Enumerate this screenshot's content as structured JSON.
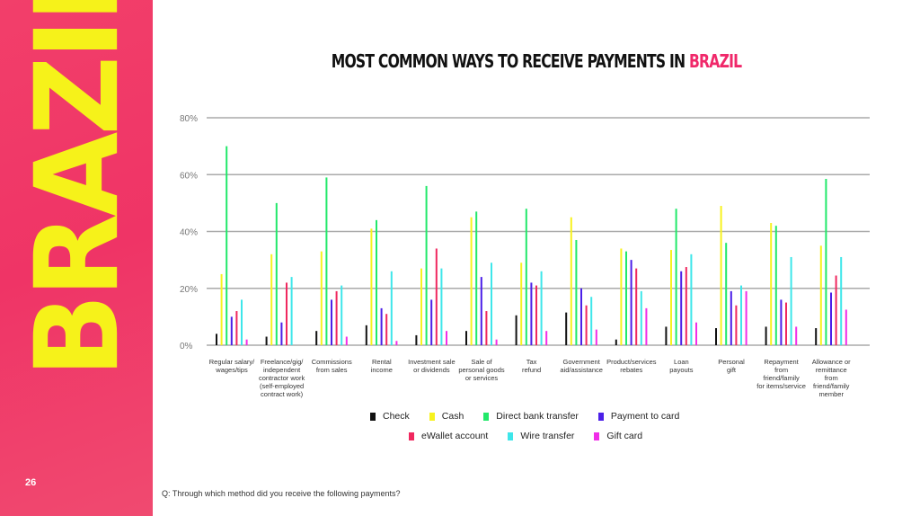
{
  "banner": {
    "word": "BRAZIL",
    "page_number": "26"
  },
  "title": {
    "prefix": "MOST COMMON WAYS TO RECEIVE PAYMENTS IN ",
    "highlight": "BRAZIL"
  },
  "question": "Q: Through which method did you receive the following payments?",
  "colors": {
    "banner": "#ef3466",
    "banner_text": "#f6f21a",
    "highlight": "#f0286a"
  },
  "chart_data": {
    "type": "bar",
    "ylim": [
      0,
      80
    ],
    "yticks": [
      "0%",
      "20%",
      "40%",
      "60%",
      "80%"
    ],
    "grid": true,
    "legend_placement": "bottom",
    "categories": [
      [
        "Regular salary/",
        "wages/tips"
      ],
      [
        "Freelance/gig/",
        "independent",
        "contractor work",
        "(self-employed",
        "contract work)"
      ],
      [
        "Commissions",
        "from sales"
      ],
      [
        "Rental",
        "income"
      ],
      [
        "Investment sale",
        "or dividends"
      ],
      [
        "Sale of",
        "personal goods",
        "or services"
      ],
      [
        "Tax",
        "refund"
      ],
      [
        "Government",
        "aid/assistance"
      ],
      [
        "Product/services",
        "rebates"
      ],
      [
        "Loan",
        "payouts"
      ],
      [
        "Personal",
        "gift"
      ],
      [
        "Repayment",
        "from",
        "friend/family",
        "for items/service"
      ],
      [
        "Allowance or",
        "remittance",
        "from",
        "friend/family",
        "member"
      ]
    ],
    "series": [
      {
        "name": "Check",
        "color": "#111111",
        "values": [
          4,
          3,
          5,
          7,
          3.5,
          5,
          10.5,
          11.5,
          2,
          6.5,
          6,
          6.5,
          6
        ]
      },
      {
        "name": "Cash",
        "color": "#f7f21f",
        "values": [
          25,
          32,
          33,
          41,
          27,
          45,
          29,
          45,
          34,
          33.5,
          49,
          43,
          35
        ]
      },
      {
        "name": "Direct bank transfer",
        "color": "#22e86a",
        "values": [
          70,
          50,
          59,
          44,
          56,
          47,
          48,
          37,
          33,
          48,
          36,
          42,
          58.5
        ]
      },
      {
        "name": "Payment to card",
        "color": "#4b1fe8",
        "values": [
          10,
          8,
          16,
          13,
          16,
          24,
          22,
          20,
          30,
          26,
          19,
          16,
          18.5
        ]
      },
      {
        "name": "eWallet account",
        "color": "#f0285f",
        "values": [
          12,
          22,
          19,
          11,
          34,
          12,
          21,
          14,
          27,
          27.5,
          14,
          15,
          24.5
        ]
      },
      {
        "name": "Wire transfer",
        "color": "#3ee6ea",
        "values": [
          16,
          24,
          21,
          26,
          27,
          29,
          26,
          17,
          19,
          32,
          21,
          31,
          31
        ]
      },
      {
        "name": "Gift card",
        "color": "#f02ee8",
        "values": [
          2,
          0,
          3,
          1.5,
          5,
          2,
          5,
          5.5,
          13,
          8,
          19,
          6.5,
          12.5
        ]
      }
    ]
  }
}
